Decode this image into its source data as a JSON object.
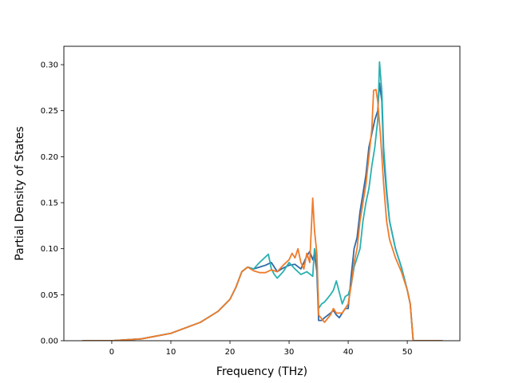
{
  "chart_data": {
    "type": "line",
    "xlabel": "Frequency (THz)",
    "ylabel": "Partial Density of States",
    "xlim": [
      -8.1,
      58.9
    ],
    "ylim": [
      0,
      0.32
    ],
    "xticks": [
      0,
      10,
      20,
      30,
      40,
      50
    ],
    "yticks": [
      0.0,
      0.05,
      0.1,
      0.15,
      0.2,
      0.25,
      0.3
    ],
    "grid": false,
    "colors": [
      "#2e6aa8",
      "#2ab0b0",
      "#f07b2a"
    ],
    "series": [
      {
        "color": "#2e6aa8",
        "x": [
          -5,
          0,
          5,
          10,
          15,
          18,
          20,
          21,
          22,
          23,
          24,
          25,
          26,
          27,
          28,
          29,
          30,
          31,
          32,
          33,
          33.5,
          34,
          34.3,
          34.7,
          35,
          35.5,
          36,
          37,
          37.5,
          38,
          38.5,
          39,
          39.5,
          40,
          40.5,
          41,
          41.5,
          42,
          42.5,
          43,
          43.5,
          44,
          44.5,
          45,
          45.3,
          45.7,
          46,
          46.5,
          47,
          48,
          49,
          50,
          50.5,
          51,
          52,
          56
        ],
        "y": [
          0,
          0,
          0.002,
          0.008,
          0.02,
          0.032,
          0.045,
          0.058,
          0.075,
          0.08,
          0.078,
          0.08,
          0.082,
          0.085,
          0.075,
          0.079,
          0.082,
          0.083,
          0.078,
          0.092,
          0.097,
          0.088,
          0.095,
          0.075,
          0.022,
          0.022,
          0.025,
          0.03,
          0.033,
          0.028,
          0.025,
          0.03,
          0.035,
          0.035,
          0.07,
          0.1,
          0.112,
          0.14,
          0.16,
          0.18,
          0.21,
          0.225,
          0.24,
          0.25,
          0.28,
          0.26,
          0.2,
          0.16,
          0.13,
          0.1,
          0.08,
          0.055,
          0.04,
          0,
          0,
          0
        ]
      },
      {
        "color": "#2ab0b0",
        "x": [
          -5,
          0,
          5,
          10,
          15,
          18,
          20,
          21,
          22,
          23,
          24,
          25,
          26,
          26.5,
          27,
          27.5,
          28,
          29,
          30,
          31,
          32,
          33,
          34,
          34.3,
          34.7,
          35,
          35.5,
          36,
          37,
          37.5,
          38,
          39,
          39.5,
          40,
          40.5,
          41,
          41.5,
          42,
          42.5,
          43,
          43.5,
          44,
          44.5,
          45,
          45.3,
          45.7,
          46,
          46.5,
          47,
          48,
          49,
          50,
          50.5,
          51,
          52,
          56
        ],
        "y": [
          0,
          0,
          0.002,
          0.008,
          0.02,
          0.032,
          0.045,
          0.058,
          0.075,
          0.08,
          0.078,
          0.085,
          0.091,
          0.094,
          0.078,
          0.072,
          0.068,
          0.075,
          0.085,
          0.078,
          0.072,
          0.075,
          0.07,
          0.1,
          0.09,
          0.035,
          0.04,
          0.042,
          0.05,
          0.055,
          0.065,
          0.04,
          0.048,
          0.05,
          0.06,
          0.08,
          0.09,
          0.1,
          0.13,
          0.15,
          0.165,
          0.19,
          0.21,
          0.24,
          0.303,
          0.27,
          0.21,
          0.165,
          0.13,
          0.1,
          0.08,
          0.055,
          0.04,
          0,
          0,
          0
        ]
      },
      {
        "color": "#f07b2a",
        "x": [
          -5,
          0,
          5,
          10,
          15,
          18,
          20,
          21,
          22,
          23,
          24,
          25,
          26,
          27,
          28,
          29,
          30,
          30.5,
          31,
          31.5,
          32,
          32.5,
          33,
          33.5,
          34,
          34.3,
          34.7,
          35,
          35.5,
          36,
          37,
          37.5,
          38,
          39,
          39.5,
          40,
          40.5,
          41,
          41.5,
          42,
          42.5,
          43,
          43.5,
          44,
          44.3,
          44.7,
          45,
          45.5,
          46,
          46.5,
          47,
          48,
          49,
          50,
          50.5,
          51,
          52,
          56
        ],
        "y": [
          0,
          0,
          0.002,
          0.008,
          0.02,
          0.032,
          0.045,
          0.058,
          0.075,
          0.08,
          0.076,
          0.074,
          0.074,
          0.077,
          0.075,
          0.082,
          0.088,
          0.095,
          0.09,
          0.1,
          0.085,
          0.078,
          0.095,
          0.085,
          0.155,
          0.12,
          0.095,
          0.028,
          0.024,
          0.02,
          0.028,
          0.035,
          0.03,
          0.03,
          0.035,
          0.04,
          0.06,
          0.085,
          0.1,
          0.13,
          0.15,
          0.17,
          0.2,
          0.23,
          0.272,
          0.273,
          0.26,
          0.22,
          0.17,
          0.13,
          0.11,
          0.09,
          0.075,
          0.055,
          0.04,
          0,
          0,
          0
        ]
      }
    ]
  }
}
